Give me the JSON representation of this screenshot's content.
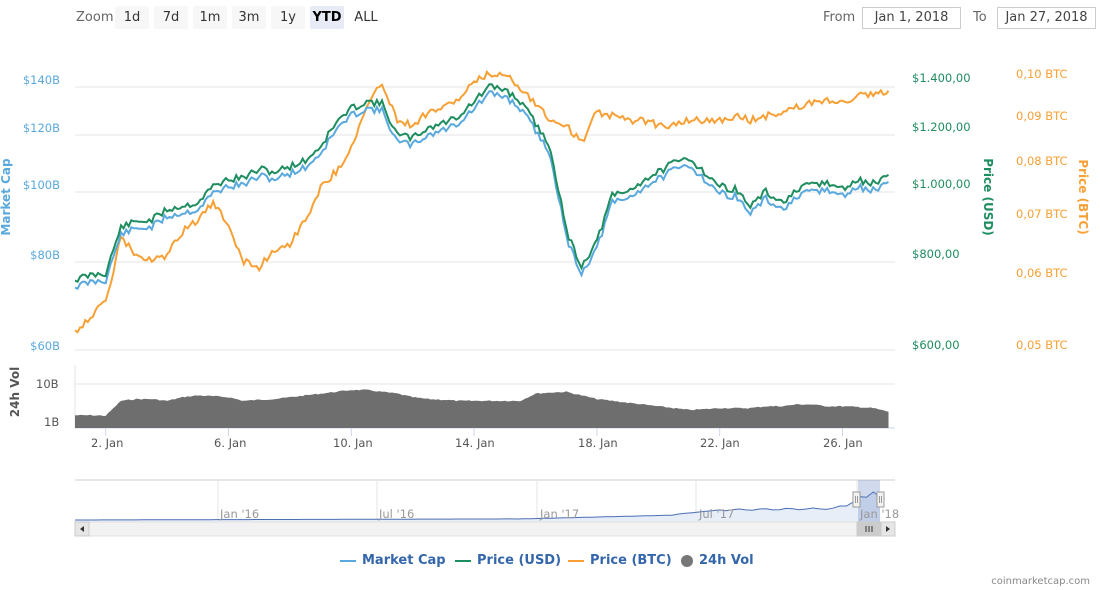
{
  "toolbar": {
    "zoom_label": "Zoom",
    "zoom_buttons": [
      "1d",
      "7d",
      "1m",
      "3m",
      "1y",
      "YTD",
      "ALL"
    ],
    "active_zoom": "YTD",
    "from_label": "From",
    "from_value": "Jan 1, 2018",
    "to_label": "To",
    "to_value": "Jan 27, 2018"
  },
  "axes": {
    "left_title": "Market Cap",
    "left_ticks": [
      "$140B",
      "$120B",
      "$100B",
      "$80B",
      "$60B"
    ],
    "usd_title": "Price (USD)",
    "usd_ticks": [
      "$1.400,00",
      "$1.200,00",
      "$1.000,00",
      "$800,00",
      "$600,00"
    ],
    "btc_title": "Price (BTC)",
    "btc_ticks": [
      "0,10 BTC",
      "0,09 BTC",
      "0,08 BTC",
      "0,07 BTC",
      "0,06 BTC",
      "0,05 BTC"
    ],
    "vol_title": "24h Vol",
    "vol_ticks": [
      "10B",
      "1B"
    ],
    "x_ticks": [
      "2. Jan",
      "6. Jan",
      "10. Jan",
      "14. Jan",
      "18. Jan",
      "22. Jan",
      "26. Jan"
    ]
  },
  "navigator": {
    "x_ticks": [
      "Jan '16",
      "Jul '16",
      "Jan '17",
      "Jul '17",
      "Jan '18"
    ]
  },
  "legend": {
    "items": [
      {
        "label": "Market Cap",
        "color": "#5aa9de",
        "type": "line"
      },
      {
        "label": "Price (USD)",
        "color": "#1e8d5f",
        "type": "line"
      },
      {
        "label": "Price (BTC)",
        "color": "#f7a035",
        "type": "line"
      },
      {
        "label": "24h Vol",
        "color": "#777777",
        "type": "dot"
      }
    ]
  },
  "credit": "coinmarketcap.com",
  "colors": {
    "market_cap": "#5aa9de",
    "price_usd": "#1e8d5f",
    "price_btc": "#f7a035",
    "volume": "#6e6e6e",
    "navigator_line": "#4a6fb5",
    "grid": "#e6e6e6"
  },
  "chart_data": {
    "type": "line",
    "title": "",
    "xlabel": "",
    "x_range": [
      "2018-01-01",
      "2018-01-27"
    ],
    "x": [
      1,
      1.5,
      2,
      2.5,
      3,
      3.5,
      4,
      4.5,
      5,
      5.5,
      6,
      6.5,
      7,
      7.5,
      8,
      8.5,
      9,
      9.5,
      10,
      10.5,
      11,
      11.5,
      12,
      12.5,
      13,
      13.5,
      14,
      14.5,
      15,
      15.5,
      16,
      16.5,
      17,
      17.5,
      18,
      18.5,
      19,
      19.5,
      20,
      20.5,
      21,
      21.5,
      22,
      22.5,
      23,
      23.5,
      24,
      24.5,
      25,
      25.5,
      26,
      26.5,
      27,
      27.5
    ],
    "x_ticks": [
      "2. Jan",
      "6. Jan",
      "10. Jan",
      "14. Jan",
      "18. Jan",
      "22. Jan",
      "26. Jan"
    ],
    "series": [
      {
        "name": "Price (USD)",
        "axis": "usd",
        "ylim": [
          600,
          1400
        ],
        "values": [
          760,
          770,
          775,
          900,
          915,
          920,
          950,
          960,
          970,
          1020,
          1045,
          1050,
          1080,
          1070,
          1090,
          1110,
          1160,
          1250,
          1310,
          1340,
          1330,
          1200,
          1190,
          1230,
          1250,
          1280,
          1340,
          1400,
          1390,
          1340,
          1250,
          1150,
          890,
          790,
          860,
          990,
          1000,
          1040,
          1070,
          1100,
          1120,
          1070,
          1020,
          1010,
          960,
          1000,
          970,
          1000,
          1030,
          1030,
          1010,
          1040,
          1030,
          1060
        ]
      },
      {
        "name": "Market Cap",
        "axis": "left",
        "ylim": [
          60,
          140
        ],
        "values": [
          73.5,
          74.5,
          75,
          87.5,
          89,
          89.5,
          92.5,
          93.5,
          94.5,
          99,
          101.5,
          102,
          105,
          104,
          106,
          108,
          113,
          121.5,
          127,
          130,
          129,
          116.5,
          115.5,
          119.5,
          121.5,
          124,
          130,
          135.5,
          134.5,
          130,
          121,
          111.5,
          86.5,
          77,
          83.5,
          96,
          97,
          101,
          104,
          107,
          108.5,
          104,
          99,
          98,
          93.5,
          97,
          94.5,
          97,
          100,
          100,
          98,
          101,
          100,
          103
        ]
      },
      {
        "name": "Price (BTC)",
        "axis": "btc",
        "ylim": [
          0.05,
          0.1
        ],
        "values": [
          0.052,
          0.054,
          0.056,
          0.066,
          0.063,
          0.062,
          0.063,
          0.067,
          0.069,
          0.072,
          0.068,
          0.062,
          0.061,
          0.064,
          0.065,
          0.069,
          0.075,
          0.078,
          0.083,
          0.092,
          0.098,
          0.089,
          0.088,
          0.091,
          0.092,
          0.094,
          0.098,
          0.1,
          0.1,
          0.097,
          0.093,
          0.089,
          0.088,
          0.084,
          0.091,
          0.09,
          0.089,
          0.089,
          0.088,
          0.088,
          0.089,
          0.089,
          0.089,
          0.09,
          0.089,
          0.09,
          0.091,
          0.092,
          0.093,
          0.094,
          0.093,
          0.095,
          0.095,
          0.096
        ]
      },
      {
        "name": "24h Vol",
        "axis": "vol",
        "type": "area",
        "ylim_labels": [
          "1B",
          "10B"
        ],
        "values": [
          3.5,
          3.5,
          3.4,
          7.5,
          8.0,
          8.0,
          7.5,
          8.5,
          9.0,
          8.8,
          8.5,
          7.5,
          7.8,
          8.0,
          8.5,
          9.0,
          9.5,
          10.0,
          10.5,
          10.5,
          10.0,
          9.5,
          8.5,
          8.0,
          7.8,
          7.5,
          7.5,
          7.5,
          7.5,
          7.5,
          9.5,
          9.8,
          10.0,
          9.0,
          8.0,
          7.5,
          7.0,
          6.5,
          6.0,
          5.5,
          5.0,
          5.2,
          5.5,
          5.5,
          5.5,
          6.0,
          6.0,
          6.5,
          6.5,
          6.0,
          6.0,
          5.8,
          5.5,
          4.5
        ]
      }
    ],
    "navigator": {
      "type": "line",
      "x_ticks": [
        "Jan '16",
        "Jul '16",
        "Jan '17",
        "Jul '17",
        "Jan '18"
      ],
      "selected_range": [
        "Jan 1, 2018",
        "Jan 27, 2018"
      ]
    }
  }
}
